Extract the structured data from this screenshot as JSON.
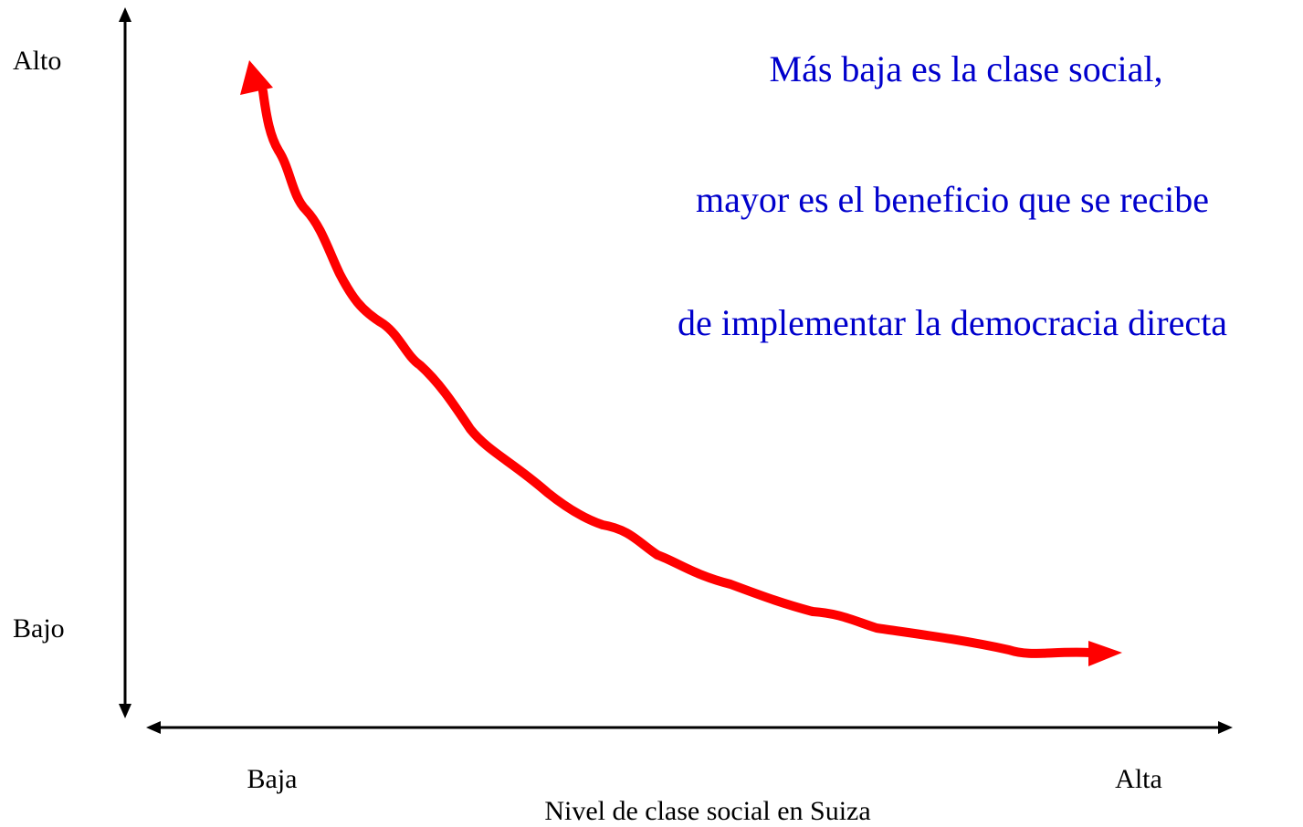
{
  "y_axis": {
    "top_label": "Alto",
    "bottom_label": "Bajo"
  },
  "x_axis": {
    "left_label": "Baja",
    "right_label": "Alta",
    "title": "Nivel de clase social en Suiza"
  },
  "annotation": {
    "lines": [
      "Más baja es la clase social,",
      "mayor es el beneficio que se recibe",
      "de implementar la democracia directa"
    ]
  }
}
